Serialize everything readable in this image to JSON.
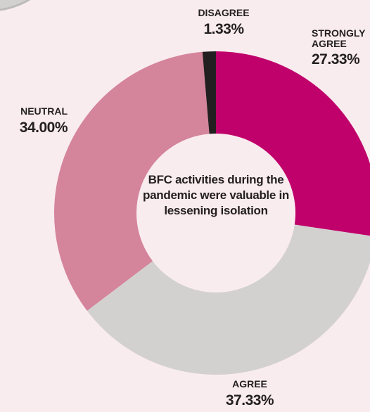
{
  "chart_data": {
    "type": "donut",
    "title": "BFC activities during the pandemic were valuable in lessening isolation",
    "categories": [
      "STRONGLY AGREE",
      "AGREE",
      "NEUTRAL",
      "DISAGREE"
    ],
    "values": [
      27.33,
      37.33,
      34.0,
      1.33
    ],
    "value_labels": [
      "27.33%",
      "37.33%",
      "34.00%",
      "1.33%"
    ],
    "colors": [
      "#c0006b",
      "#d3d1d0",
      "#d4849b",
      "#231f20"
    ]
  }
}
